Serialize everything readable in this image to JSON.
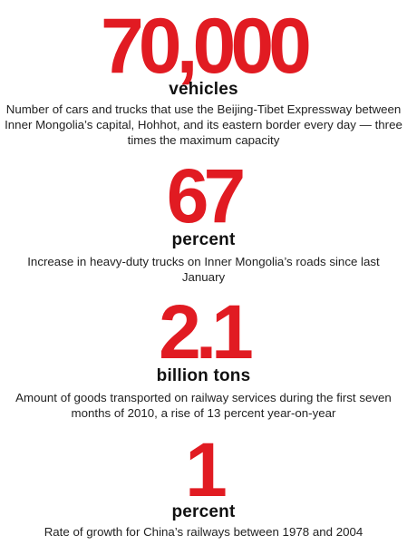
{
  "colors": {
    "accent": "#e11b22",
    "text": "#1a1a1a",
    "background": "#ffffff"
  },
  "stats": [
    {
      "number": "70,000",
      "unit": "vehicles",
      "description": "Number of cars and trucks that use the Beijing-Tibet Expressway between Inner Mongolia’s capital, Hohhot, and its eastern border every day — three times the maximum capacity"
    },
    {
      "number": "67",
      "unit": "percent",
      "description": "Increase in heavy-duty trucks on Inner Mongolia’s roads since last January"
    },
    {
      "number": "2.1",
      "unit": "billion tons",
      "description": "Amount of goods transported on railway services during the first seven months of 2010, a rise of 13 percent year-on-year"
    },
    {
      "number": "1",
      "unit": "percent",
      "description": "Rate of growth for China’s railways between 1978 and 2004"
    }
  ]
}
